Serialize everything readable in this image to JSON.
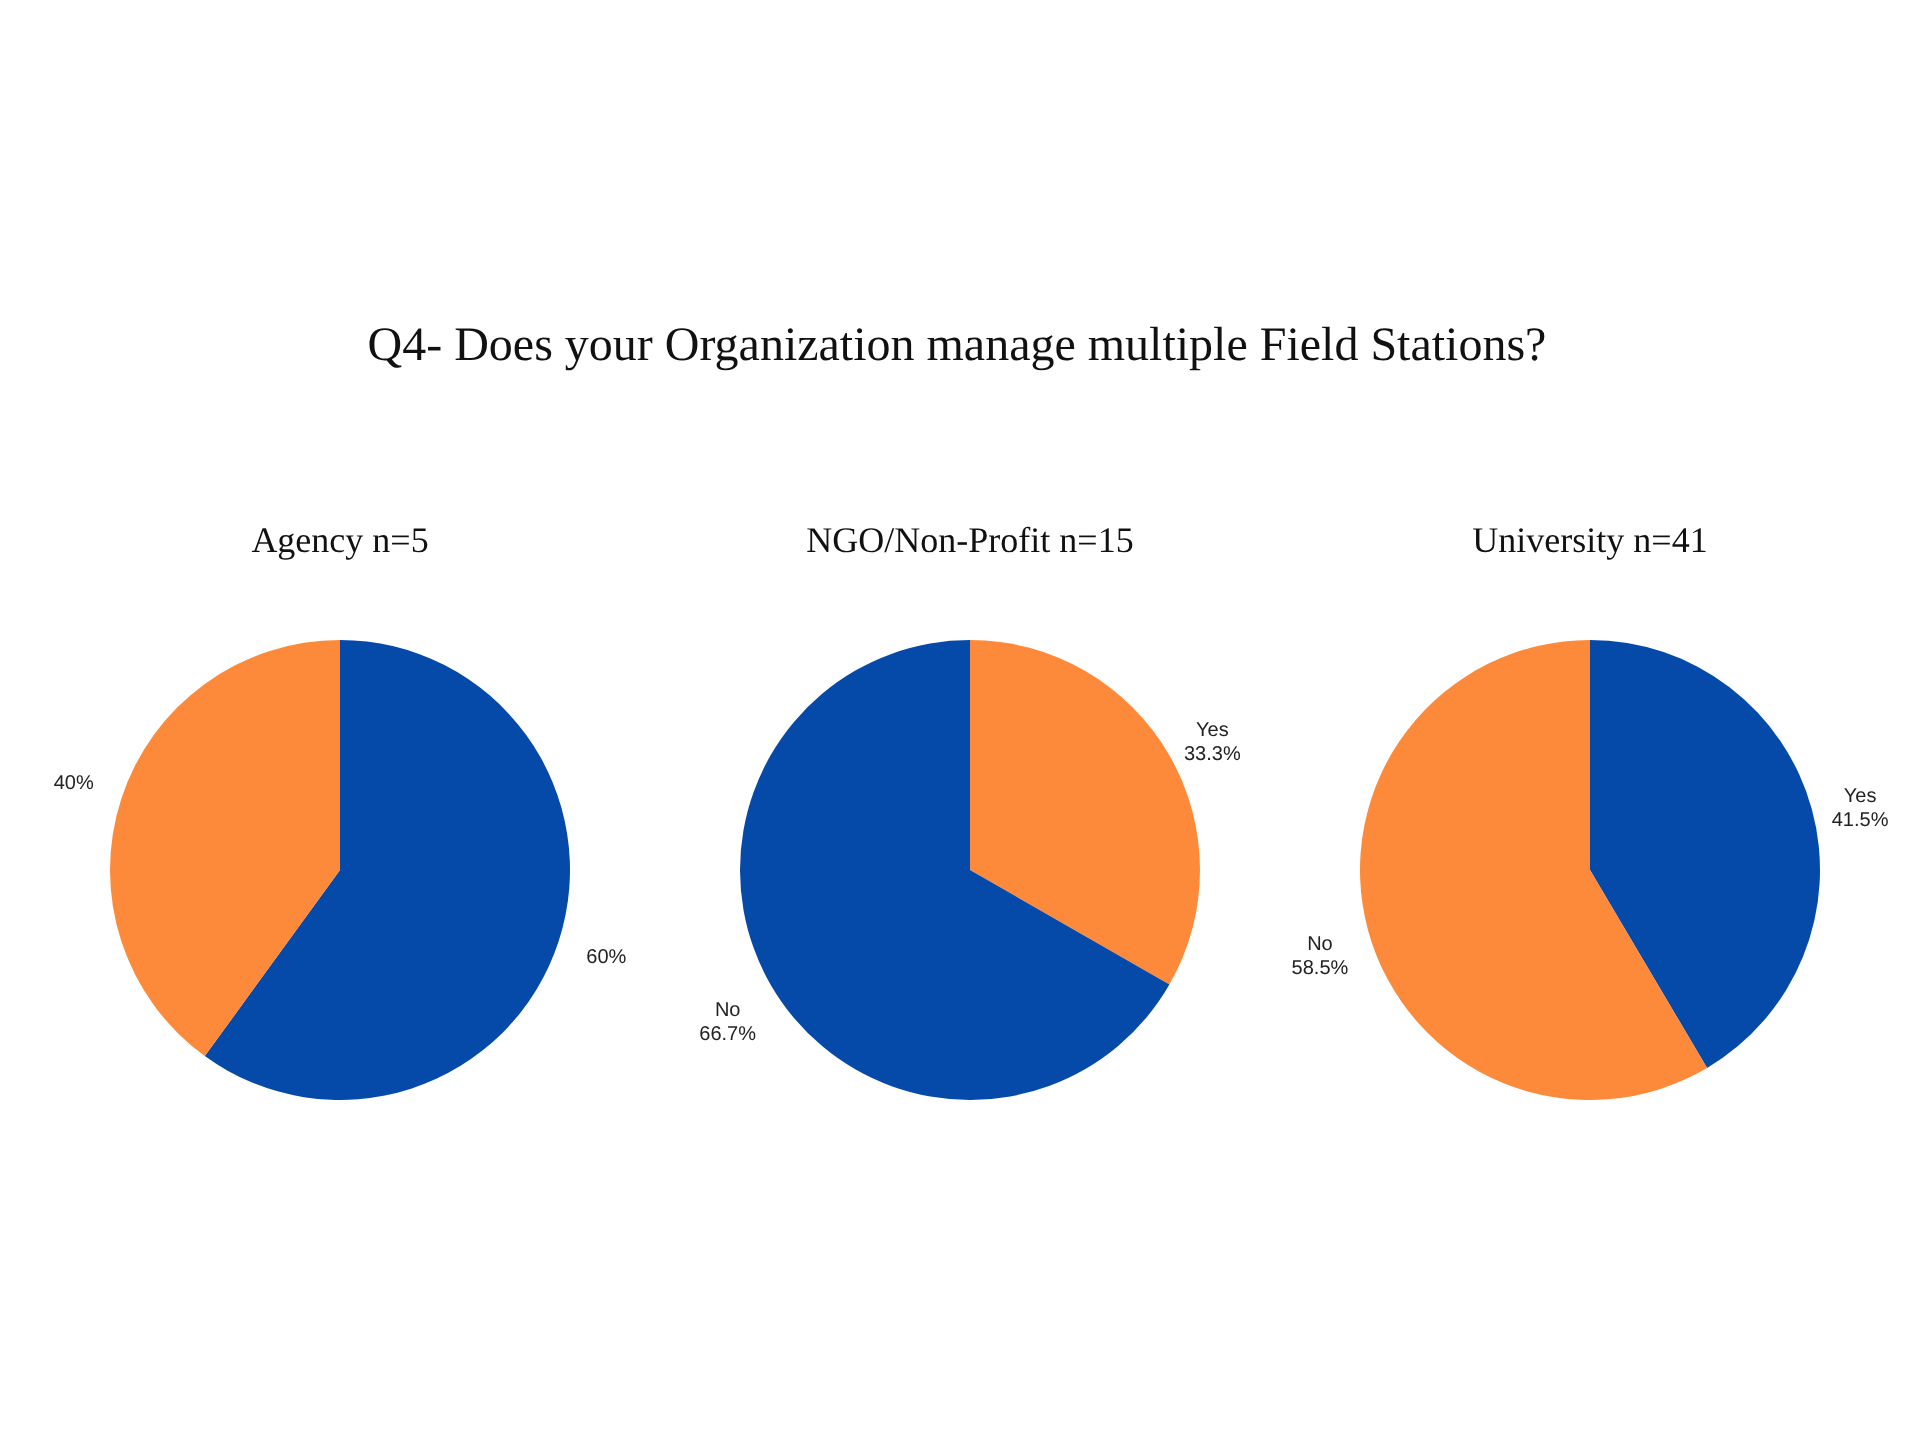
{
  "chart_data": [
    {
      "type": "other",
      "title": "Q4- Does your Organization manage multiple Field Stations?"
    },
    {
      "type": "pie",
      "title": "Agency  n=5",
      "categories": [
        null,
        null
      ],
      "values": [
        60,
        40
      ],
      "colors": [
        "#054aa8",
        "#fd8a3a"
      ],
      "value_labels": [
        "60%",
        "40%"
      ]
    },
    {
      "type": "pie",
      "title": "NGO/Non-Profit n=15",
      "categories": [
        "Yes",
        "No"
      ],
      "values": [
        33.3,
        66.7
      ],
      "colors": [
        "#fd8a3a",
        "#054aa8"
      ],
      "value_labels": [
        "33.3%",
        "66.7%"
      ]
    },
    {
      "type": "pie",
      "title": "University  n=41",
      "categories": [
        "Yes",
        "No"
      ],
      "values": [
        41.5,
        58.5
      ],
      "colors": [
        "#054aa8",
        "#fd8a3a"
      ],
      "value_labels": [
        "41.5%",
        "58.5%"
      ]
    }
  ]
}
